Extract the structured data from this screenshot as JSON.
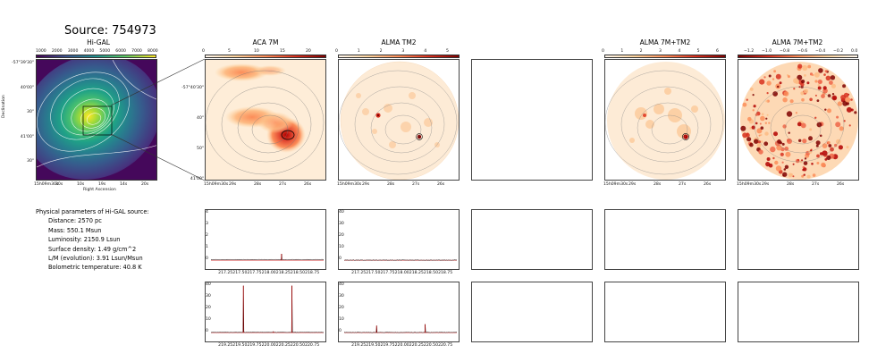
{
  "header": {
    "source_title": "Source: 754973"
  },
  "panel_titles": {
    "higal": "Hi-GAL",
    "aca7m": "ACA 7M",
    "almatm2": "ALMA TM2",
    "alma7mtm2": "ALMA 7M+TM2",
    "alma7mtm2_resid": "ALMA 7M+TM2"
  },
  "higal": {
    "colorbar_ticks": [
      "1000",
      "2000",
      "3000",
      "4000",
      "5000",
      "6000",
      "7000",
      "8000"
    ],
    "dec_ticks": [
      "-57°39'30\"",
      "40'00\"",
      "30\"",
      "41'00\"",
      "30\""
    ],
    "ra_ticks": [
      "15h09m30s",
      "30s",
      "10s",
      "19s",
      "14s",
      "20s"
    ],
    "xlabel": "Right Ascension",
    "ylabel": "Declination",
    "colormap": "viridis"
  },
  "aca7m": {
    "colorbar_ticks": [
      "0",
      "5",
      "10",
      "15",
      "20"
    ],
    "dec_ticks": [
      "-57°40'30\"",
      "40\"",
      "50\"",
      "41'00\""
    ],
    "ra_ticks": [
      "15h09m30s",
      "29s",
      "28s",
      "27s",
      "26s"
    ],
    "colormap": "OrRd"
  },
  "almatm2": {
    "colorbar_ticks": [
      "0",
      "1",
      "2",
      "3",
      "4",
      "5"
    ],
    "ra_ticks": [
      "15h09m30s",
      "29s",
      "28s",
      "27s",
      "26s"
    ],
    "colormap": "OrRd"
  },
  "alma7mtm2": {
    "colorbar_ticks": [
      "0",
      "1",
      "2",
      "3",
      "4",
      "5",
      "6"
    ],
    "ra_ticks": [
      "15h09m30s",
      "29s",
      "28s",
      "27s",
      "26s"
    ],
    "colormap": "OrRd"
  },
  "alma7mtm2_resid": {
    "colorbar_ticks": [
      "−1.2",
      "−1.0",
      "−0.8",
      "−0.6",
      "−0.4",
      "−0.2",
      "0.0"
    ],
    "ra_ticks": [
      "15h09m30s",
      "29s",
      "28s",
      "27s",
      "26s"
    ],
    "colormap": "OrRd_r"
  },
  "physical_params": {
    "heading": "Physical parameters of Hi-GAL source:",
    "lines": [
      "Distance: 2570 pc",
      "Mass: 550.1 Msun",
      "Luminosity: 2150.9 Lsun",
      "Surface density: 1.49 g/cm^2",
      "L/M (evolution): 3.91 Lsun/Msun",
      "Bolometric temperature: 40.8 K"
    ]
  },
  "chart_data": [
    {
      "type": "line",
      "panel": "spectrum-aca7m-spw1",
      "x_ticks": [
        "217.25",
        "217.50",
        "217.75",
        "218.00",
        "218.25",
        "218.50",
        "218.75"
      ],
      "y_ticks": [
        "0",
        "1",
        "2",
        "3",
        "4"
      ],
      "xlim": [
        217.0,
        218.95
      ],
      "ylim": [
        -0.3,
        4.1
      ],
      "baseline": 0.05,
      "peaks": [
        {
          "x": 218.22,
          "y": 0.55
        }
      ],
      "line_color": "#000000",
      "zero_line_color": "#cc0000"
    },
    {
      "type": "line",
      "panel": "spectrum-almatm2-spw1",
      "x_ticks": [
        "217.25",
        "217.50",
        "217.75",
        "218.00",
        "218.25",
        "218.50",
        "218.75"
      ],
      "y_ticks": [
        "0",
        "10",
        "20",
        "30",
        "40"
      ],
      "xlim": [
        217.0,
        218.95
      ],
      "ylim": [
        -3,
        41
      ],
      "baseline": 0.1,
      "peaks": [],
      "line_color": "#000000",
      "zero_line_color": "#cc0000"
    },
    {
      "type": "line",
      "panel": "spectrum-aca7m-spw2",
      "x_ticks": [
        "219.25",
        "219.50",
        "219.75",
        "220.00",
        "220.25",
        "220.50",
        "220.75"
      ],
      "y_ticks": [
        "0",
        "10",
        "20",
        "30",
        "40"
      ],
      "xlim": [
        219.0,
        220.95
      ],
      "ylim": [
        -3,
        41
      ],
      "baseline": 0.3,
      "peaks": [
        {
          "x": 219.56,
          "y": 40.5
        },
        {
          "x": 220.4,
          "y": 40.5
        },
        {
          "x": 220.08,
          "y": 1.0
        }
      ],
      "line_color": "#000000",
      "zero_line_color": "#cc0000"
    },
    {
      "type": "line",
      "panel": "spectrum-almatm2-spw2",
      "x_ticks": [
        "219.25",
        "219.50",
        "219.75",
        "220.00",
        "220.25",
        "220.50",
        "220.75"
      ],
      "y_ticks": [
        "0",
        "10",
        "20",
        "30",
        "40"
      ],
      "xlim": [
        219.0,
        220.95
      ],
      "ylim": [
        -3,
        41
      ],
      "baseline": 0.2,
      "peaks": [
        {
          "x": 219.56,
          "y": 6.0
        },
        {
          "x": 220.4,
          "y": 7.2
        }
      ],
      "line_color": "#000000",
      "zero_line_color": "#cc0000"
    }
  ]
}
